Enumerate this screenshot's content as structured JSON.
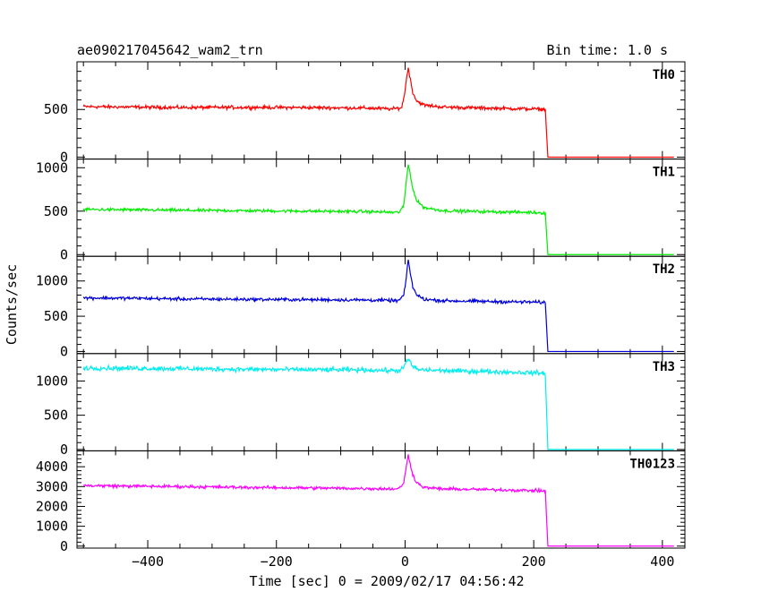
{
  "header": {
    "left_title": "ae090217045642_wam2_trn",
    "right_title": "Bin time: 1.0 s"
  },
  "chart_data": {
    "type": "line",
    "title": "ae090217045642_wam2_trn",
    "subtitle": "Bin time: 1.0 s",
    "xlabel": "Time [sec] 0 = 2009/02/17 04:56:42",
    "ylabel": "Counts/sec",
    "xlim": [
      -510,
      435
    ],
    "x_ticks": [
      -400,
      -200,
      0,
      200,
      400
    ],
    "x_tick_labels": [
      "−400",
      "−200",
      "0",
      "200",
      "400"
    ],
    "grid": false,
    "legend": "none",
    "description_points_note": "x in seconds, y in counts/sec; representative samples of each light curve",
    "panels": [
      {
        "name": "TH0",
        "color": "#ff0000",
        "ylim": [
          -20,
          1000
        ],
        "y_ticks": [
          0,
          500
        ],
        "y_tick_labels": [
          "0",
          "500"
        ],
        "points": [
          [
            -500,
            530
          ],
          [
            -420,
            525
          ],
          [
            -350,
            520
          ],
          [
            -250,
            522
          ],
          [
            -150,
            520
          ],
          [
            -60,
            515
          ],
          [
            -20,
            505
          ],
          [
            -5,
            520
          ],
          [
            0,
            700
          ],
          [
            3,
            860
          ],
          [
            5,
            940
          ],
          [
            8,
            820
          ],
          [
            12,
            680
          ],
          [
            18,
            590
          ],
          [
            30,
            545
          ],
          [
            60,
            525
          ],
          [
            120,
            515
          ],
          [
            200,
            505
          ],
          [
            218,
            500
          ],
          [
            222,
            0
          ],
          [
            260,
            0
          ],
          [
            350,
            0
          ],
          [
            420,
            0
          ]
        ]
      },
      {
        "name": "TH1",
        "color": "#00ee00",
        "ylim": [
          -20,
          1100
        ],
        "y_ticks": [
          0,
          500,
          1000
        ],
        "y_tick_labels": [
          "0",
          "500",
          "1000"
        ],
        "points": [
          [
            -500,
            520
          ],
          [
            -420,
            515
          ],
          [
            -350,
            510
          ],
          [
            -250,
            505
          ],
          [
            -150,
            500
          ],
          [
            -60,
            495
          ],
          [
            -10,
            485
          ],
          [
            -2,
            560
          ],
          [
            2,
            850
          ],
          [
            5,
            1040
          ],
          [
            8,
            930
          ],
          [
            12,
            760
          ],
          [
            18,
            620
          ],
          [
            30,
            540
          ],
          [
            60,
            505
          ],
          [
            120,
            495
          ],
          [
            200,
            485
          ],
          [
            218,
            480
          ],
          [
            222,
            0
          ],
          [
            260,
            0
          ],
          [
            350,
            0
          ],
          [
            420,
            0
          ]
        ]
      },
      {
        "name": "TH2",
        "color": "#0000dd",
        "ylim": [
          -30,
          1350
        ],
        "y_ticks": [
          0,
          500,
          1000
        ],
        "y_tick_labels": [
          "0",
          "500",
          "1000"
        ],
        "points": [
          [
            -500,
            760
          ],
          [
            -420,
            755
          ],
          [
            -350,
            745
          ],
          [
            -250,
            740
          ],
          [
            -150,
            735
          ],
          [
            -60,
            730
          ],
          [
            -10,
            720
          ],
          [
            -2,
            800
          ],
          [
            2,
            1050
          ],
          [
            5,
            1300
          ],
          [
            8,
            1120
          ],
          [
            12,
            920
          ],
          [
            18,
            800
          ],
          [
            30,
            740
          ],
          [
            60,
            720
          ],
          [
            120,
            710
          ],
          [
            200,
            700
          ],
          [
            218,
            695
          ],
          [
            222,
            0
          ],
          [
            260,
            0
          ],
          [
            350,
            0
          ],
          [
            420,
            0
          ]
        ]
      },
      {
        "name": "TH3",
        "color": "#00eeee",
        "ylim": [
          -20,
          1400
        ],
        "y_ticks": [
          0,
          500,
          1000
        ],
        "y_tick_labels": [
          "0",
          "500",
          "1000"
        ],
        "points": [
          [
            -500,
            1190
          ],
          [
            -420,
            1185
          ],
          [
            -350,
            1180
          ],
          [
            -250,
            1170
          ],
          [
            -150,
            1165
          ],
          [
            -60,
            1160
          ],
          [
            -10,
            1150
          ],
          [
            -2,
            1200
          ],
          [
            3,
            1290
          ],
          [
            6,
            1320
          ],
          [
            10,
            1230
          ],
          [
            20,
            1165
          ],
          [
            60,
            1150
          ],
          [
            120,
            1140
          ],
          [
            200,
            1120
          ],
          [
            218,
            1110
          ],
          [
            222,
            0
          ],
          [
            260,
            0
          ],
          [
            350,
            0
          ],
          [
            420,
            0
          ]
        ]
      },
      {
        "name": "TH0123",
        "color": "#ff00ff",
        "ylim": [
          -100,
          4800
        ],
        "y_ticks": [
          0,
          1000,
          2000,
          3000,
          4000
        ],
        "y_tick_labels": [
          "0",
          "1000",
          "2000",
          "3000",
          "4000"
        ],
        "points": [
          [
            -500,
            3050
          ],
          [
            -420,
            3020
          ],
          [
            -350,
            3000
          ],
          [
            -250,
            2960
          ],
          [
            -150,
            2930
          ],
          [
            -60,
            2900
          ],
          [
            -10,
            2880
          ],
          [
            -2,
            3200
          ],
          [
            2,
            4000
          ],
          [
            5,
            4600
          ],
          [
            8,
            4150
          ],
          [
            12,
            3600
          ],
          [
            18,
            3200
          ],
          [
            30,
            2950
          ],
          [
            60,
            2880
          ],
          [
            120,
            2850
          ],
          [
            200,
            2800
          ],
          [
            218,
            2780
          ],
          [
            222,
            0
          ],
          [
            260,
            0
          ],
          [
            350,
            0
          ],
          [
            420,
            0
          ]
        ]
      }
    ]
  }
}
